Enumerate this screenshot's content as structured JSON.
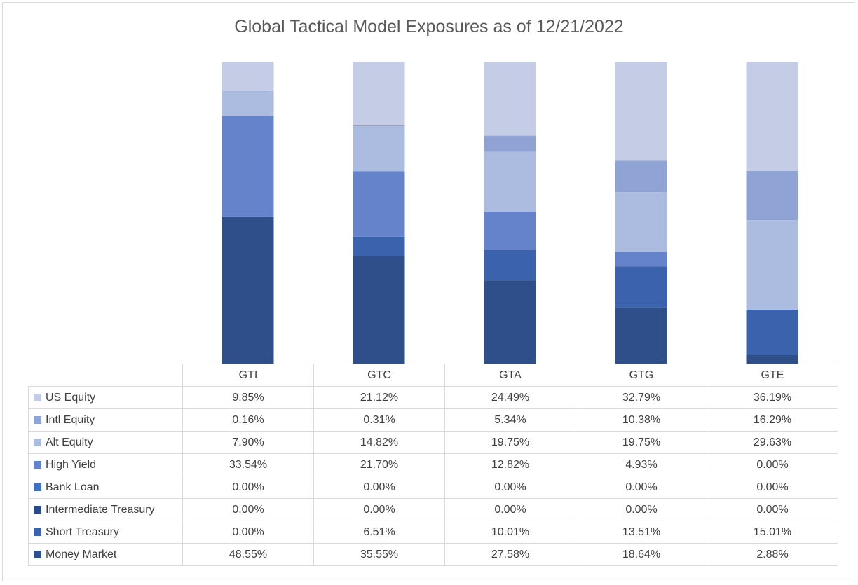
{
  "chart_data": {
    "type": "bar",
    "stacked": true,
    "title": "Global Tactical Model Exposures as of 12/21/2022",
    "categories": [
      "GTI",
      "GTC",
      "GTA",
      "GTG",
      "GTE"
    ],
    "ylim": [
      0,
      100
    ],
    "legend_position": "data-table",
    "series": [
      {
        "name": "US Equity",
        "color": "#c5cde6",
        "values": [
          9.85,
          21.12,
          24.49,
          32.79,
          36.19
        ],
        "labels": [
          "9.85%",
          "21.12%",
          "24.49%",
          "32.79%",
          "36.19%"
        ]
      },
      {
        "name": "Intl Equity",
        "color": "#8fa3d5",
        "values": [
          0.16,
          0.31,
          5.34,
          10.38,
          16.29
        ],
        "labels": [
          "0.16%",
          "0.31%",
          "5.34%",
          "10.38%",
          "16.29%"
        ]
      },
      {
        "name": "Alt Equity",
        "color": "#acbbe0",
        "values": [
          7.9,
          14.82,
          19.75,
          19.75,
          29.63
        ],
        "labels": [
          "7.90%",
          "14.82%",
          "19.75%",
          "19.75%",
          "29.63%"
        ]
      },
      {
        "name": "High Yield",
        "color": "#6483ca",
        "values": [
          33.54,
          21.7,
          12.82,
          4.93,
          0.0
        ],
        "labels": [
          "33.54%",
          "21.70%",
          "12.82%",
          "4.93%",
          "0.00%"
        ]
      },
      {
        "name": "Bank Loan",
        "color": "#4470c4",
        "values": [
          0.0,
          0.0,
          0.0,
          0.0,
          0.0
        ],
        "labels": [
          "0.00%",
          "0.00%",
          "0.00%",
          "0.00%",
          "0.00%"
        ]
      },
      {
        "name": "Intermediate Treasury",
        "color": "#2a4a85",
        "values": [
          0.0,
          0.0,
          0.0,
          0.0,
          0.0
        ],
        "labels": [
          "0.00%",
          "0.00%",
          "0.00%",
          "0.00%",
          "0.00%"
        ]
      },
      {
        "name": "Short Treasury",
        "color": "#3b62ad",
        "values": [
          0.0,
          6.51,
          10.01,
          13.51,
          15.01
        ],
        "labels": [
          "0.00%",
          "6.51%",
          "10.01%",
          "13.51%",
          "15.01%"
        ]
      },
      {
        "name": "Money Market",
        "color": "#2e4f8a",
        "values": [
          48.55,
          35.55,
          27.58,
          18.64,
          2.88
        ],
        "labels": [
          "48.55%",
          "35.55%",
          "27.58%",
          "18.64%",
          "2.88%"
        ]
      }
    ]
  }
}
